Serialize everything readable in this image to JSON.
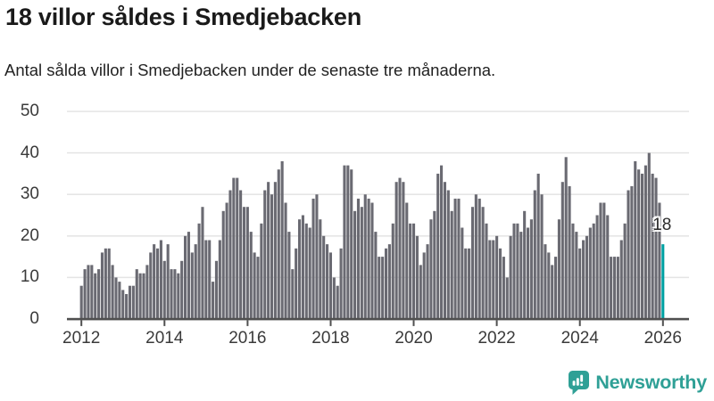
{
  "header": {
    "title": "18 villor såldes i Smedjebacken",
    "subtitle": "Antal sålda villor i Smedjebacken under de senaste tre månaderna."
  },
  "chart_data": {
    "type": "bar",
    "title": "18 villor såldes i Smedjebacken",
    "subtitle": "Antal sålda villor i Smedjebacken under de senaste tre månaderna.",
    "x_start": "2012-01",
    "x_end": "2026-01",
    "x_unit": "month",
    "x_tick_labels": [
      "2012",
      "2014",
      "2016",
      "2018",
      "2020",
      "2022",
      "2024",
      "2026"
    ],
    "months_per_x_tick": 24,
    "y_ticks": [
      0,
      10,
      20,
      30,
      40,
      50
    ],
    "ylim": [
      0,
      50
    ],
    "grid": "horizontal",
    "legend": "none",
    "bar_color": "#6a6a72",
    "highlight_color": "#00a1a3",
    "values": [
      8,
      12,
      13,
      13,
      11,
      12,
      16,
      17,
      17,
      13,
      10,
      9,
      7,
      6,
      8,
      8,
      12,
      11,
      11,
      13,
      16,
      18,
      17,
      19,
      14,
      18,
      12,
      12,
      11,
      14,
      20,
      21,
      16,
      18,
      23,
      27,
      19,
      19,
      9,
      14,
      19,
      26,
      28,
      31,
      34,
      34,
      31,
      27,
      27,
      21,
      16,
      15,
      23,
      31,
      33,
      30,
      33,
      36,
      38,
      28,
      21,
      12,
      17,
      24,
      25,
      23,
      22,
      29,
      30,
      24,
      20,
      18,
      16,
      10,
      8,
      17,
      37,
      37,
      36,
      26,
      29,
      27,
      30,
      29,
      28,
      21,
      15,
      15,
      17,
      18,
      23,
      33,
      34,
      33,
      28,
      23,
      23,
      20,
      13,
      16,
      18,
      24,
      26,
      35,
      37,
      33,
      31,
      26,
      29,
      29,
      22,
      17,
      17,
      27,
      30,
      29,
      27,
      23,
      19,
      19,
      20,
      17,
      15,
      10,
      20,
      23,
      23,
      21,
      26,
      22,
      24,
      31,
      35,
      30,
      18,
      16,
      13,
      15,
      24,
      33,
      39,
      32,
      23,
      21,
      17,
      19,
      20,
      22,
      23,
      25,
      28,
      28,
      25,
      15,
      15,
      15,
      19,
      23,
      31,
      32,
      38,
      36,
      35,
      37,
      40,
      35,
      34,
      28,
      18
    ],
    "highlight": {
      "index": 168,
      "value": 18,
      "label": "18"
    }
  },
  "footer": {
    "brand": "Newsworthy",
    "brand_color": "#2fa096",
    "logo_icon": "bar-chart-speech-bubble"
  },
  "colors": {
    "background": "#ffffff",
    "text": "#1a1a1a",
    "axis": "#4f4f4f",
    "gridline": "#e4e4e4",
    "bar": "#6a6a72",
    "accent": "#00a1a3"
  }
}
